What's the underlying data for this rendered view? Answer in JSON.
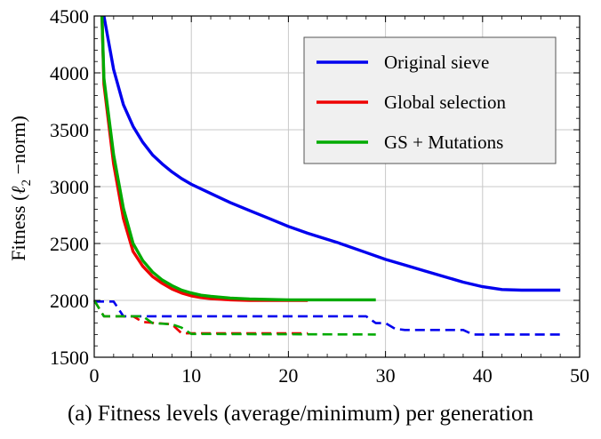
{
  "caption": "(a) Fitness levels (average/minimum) per generation",
  "chart_data": {
    "type": "line",
    "title": "",
    "xlabel": "",
    "ylabel_prefix": "Fitness (",
    "ylabel_ell": "ℓ",
    "ylabel_sub": "2",
    "ylabel_suffix": " −norm)",
    "xlim": [
      0,
      50
    ],
    "ylim": [
      1500,
      4500
    ],
    "xticks": [
      0,
      10,
      20,
      30,
      40,
      50
    ],
    "yticks": [
      1500,
      2000,
      2500,
      3000,
      3500,
      4000,
      4500
    ],
    "grid": true,
    "legend_position": "top-right",
    "series": [
      {
        "name": "Original sieve",
        "color": "#0000ee",
        "style": "solid",
        "x": [
          1,
          2,
          3,
          4,
          5,
          6,
          7,
          8,
          9,
          10,
          12,
          14,
          16,
          18,
          20,
          22,
          25,
          28,
          30,
          32,
          34,
          36,
          38,
          40,
          42,
          44,
          46,
          48
        ],
        "y": [
          4500,
          4030,
          3720,
          3530,
          3390,
          3280,
          3200,
          3130,
          3070,
          3020,
          2940,
          2860,
          2790,
          2720,
          2650,
          2590,
          2510,
          2420,
          2360,
          2310,
          2260,
          2210,
          2160,
          2120,
          2095,
          2090,
          2090,
          2090
        ]
      },
      {
        "name": "Global selection",
        "color": "#ee0000",
        "style": "solid",
        "x": [
          0.8,
          1,
          2,
          3,
          4,
          5,
          6,
          7,
          8,
          9,
          10,
          11,
          12,
          14,
          16,
          18,
          20,
          22
        ],
        "y": [
          4500,
          3900,
          3200,
          2720,
          2430,
          2300,
          2210,
          2150,
          2100,
          2065,
          2040,
          2025,
          2015,
          2005,
          2000,
          2000,
          2000,
          2000
        ]
      },
      {
        "name": "GS + Mutations",
        "color": "#00aa00",
        "style": "solid",
        "x": [
          0.8,
          1,
          2,
          3,
          4,
          5,
          6,
          7,
          8,
          9,
          10,
          11,
          12,
          14,
          16,
          18,
          20,
          22,
          24,
          26,
          29
        ],
        "y": [
          4500,
          3950,
          3280,
          2810,
          2500,
          2350,
          2250,
          2180,
          2130,
          2090,
          2065,
          2045,
          2035,
          2020,
          2012,
          2008,
          2005,
          2005,
          2005,
          2005,
          2005
        ]
      },
      {
        "name": "",
        "color": "#0000ee",
        "style": "dashed",
        "x": [
          0,
          2,
          3,
          28,
          29,
          30,
          31,
          32,
          35,
          38,
          39,
          40,
          48
        ],
        "y": [
          1990,
          1990,
          1860,
          1860,
          1800,
          1800,
          1750,
          1740,
          1740,
          1740,
          1700,
          1700,
          1700
        ]
      },
      {
        "name": "",
        "color": "#ee0000",
        "style": "dashed",
        "x": [
          0,
          1,
          4,
          5,
          8,
          9,
          10,
          22
        ],
        "y": [
          2000,
          1860,
          1860,
          1810,
          1790,
          1710,
          1710,
          1710
        ]
      },
      {
        "name": "",
        "color": "#00aa00",
        "style": "dashed",
        "x": [
          0,
          1,
          5,
          6,
          8,
          9,
          10,
          29
        ],
        "y": [
          2000,
          1860,
          1860,
          1800,
          1790,
          1760,
          1705,
          1700
        ]
      }
    ]
  }
}
